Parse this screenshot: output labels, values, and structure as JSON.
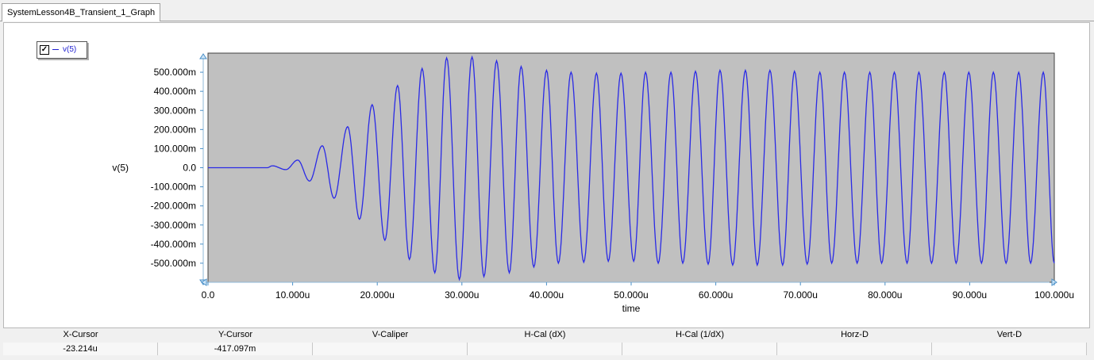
{
  "tab": {
    "label": "SystemLesson4B_Transient_1_Graph"
  },
  "legend": {
    "checked": "✓",
    "label": "v(5)"
  },
  "chart_data": {
    "type": "line",
    "xlabel": "time",
    "ylabel": "v(5)",
    "xlim": [
      0,
      100
    ],
    "x_unit": "u",
    "ylim": [
      -0.6,
      0.6
    ],
    "y_ticks": [
      -0.5,
      -0.4,
      -0.3,
      -0.2,
      -0.1,
      0,
      0.1,
      0.2,
      0.3,
      0.4,
      0.5
    ],
    "y_tick_labels": [
      "-500.000m",
      "-400.000m",
      "-300.000m",
      "-200.000m",
      "-100.000m",
      "0.0",
      "100.000m",
      "200.000m",
      "300.000m",
      "400.000m",
      "500.000m"
    ],
    "x_ticks": [
      0,
      10,
      20,
      30,
      40,
      50,
      60,
      70,
      80,
      90,
      100
    ],
    "x_tick_labels": [
      "0.0",
      "10.000u",
      "20.000u",
      "30.000u",
      "40.000u",
      "50.000u",
      "60.000u",
      "70.000u",
      "80.000u",
      "90.000u",
      "100.000u"
    ],
    "grid": false,
    "background": "#c0c0c0",
    "series": [
      {
        "name": "v(5)",
        "color": "#2a2ae6",
        "signal_start_x": 7,
        "period": 2.935,
        "peaks": [
          [
            7.6,
            0.01
          ],
          [
            9.2,
            -0.01
          ],
          [
            10.6,
            0.04
          ],
          [
            12.0,
            -0.07
          ],
          [
            13.5,
            0.115
          ],
          [
            14.9,
            -0.16
          ],
          [
            16.5,
            0.215
          ],
          [
            17.9,
            -0.27
          ],
          [
            19.4,
            0.33
          ],
          [
            20.9,
            -0.38
          ],
          [
            22.4,
            0.43
          ],
          [
            23.8,
            -0.48
          ],
          [
            25.3,
            0.52
          ],
          [
            26.8,
            -0.55
          ],
          [
            28.2,
            0.575
          ],
          [
            29.7,
            -0.585
          ],
          [
            31.2,
            0.58
          ],
          [
            32.6,
            -0.57
          ],
          [
            34.1,
            0.56
          ],
          [
            35.6,
            -0.55
          ],
          [
            37.0,
            0.53
          ],
          [
            38.5,
            -0.52
          ],
          [
            40.0,
            0.51
          ],
          [
            41.4,
            -0.5
          ],
          [
            42.9,
            0.5
          ],
          [
            44.4,
            -0.495
          ],
          [
            45.9,
            0.495
          ],
          [
            47.3,
            -0.49
          ],
          [
            48.8,
            0.495
          ],
          [
            50.3,
            -0.49
          ],
          [
            51.7,
            0.5
          ],
          [
            53.2,
            -0.5
          ],
          [
            54.7,
            0.5
          ],
          [
            56.1,
            -0.5
          ],
          [
            57.6,
            0.505
          ],
          [
            59.1,
            -0.505
          ],
          [
            60.5,
            0.51
          ],
          [
            62.0,
            -0.51
          ],
          [
            63.5,
            0.51
          ],
          [
            64.9,
            -0.51
          ],
          [
            66.4,
            0.51
          ],
          [
            67.9,
            -0.51
          ],
          [
            69.3,
            0.505
          ],
          [
            70.8,
            -0.505
          ],
          [
            72.3,
            0.5
          ],
          [
            73.7,
            -0.5
          ],
          [
            75.2,
            0.5
          ],
          [
            76.7,
            -0.5
          ],
          [
            78.2,
            0.5
          ],
          [
            79.6,
            -0.5
          ],
          [
            81.1,
            0.5
          ],
          [
            82.6,
            -0.5
          ],
          [
            84.0,
            0.5
          ],
          [
            85.5,
            -0.5
          ],
          [
            87.0,
            0.5
          ],
          [
            88.4,
            -0.5
          ],
          [
            89.9,
            0.5
          ],
          [
            91.4,
            -0.5
          ],
          [
            92.8,
            0.5
          ],
          [
            94.3,
            -0.5
          ],
          [
            95.8,
            0.5
          ],
          [
            97.2,
            -0.5
          ],
          [
            98.7,
            0.5
          ],
          [
            100,
            -0.5
          ]
        ]
      }
    ]
  },
  "status": {
    "headers": [
      "X-Cursor",
      "Y-Cursor",
      "V-Caliper",
      "H-Cal (dX)",
      "H-Cal (1/dX)",
      "Horz-D",
      "Vert-D"
    ],
    "values": [
      "-23.214u",
      "-417.097m",
      "",
      "",
      "",
      "",
      ""
    ]
  }
}
